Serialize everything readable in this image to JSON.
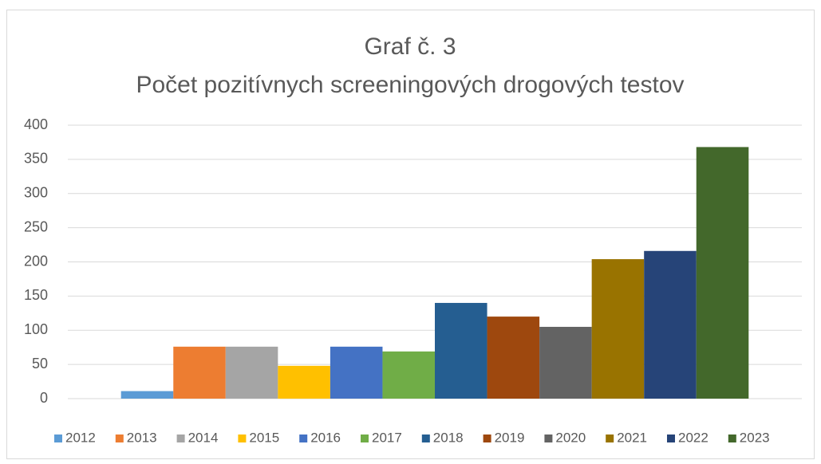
{
  "chart_data": {
    "type": "bar",
    "title": "Graf č. 3",
    "subtitle": "Počet pozitívnych screeningových drogových testov",
    "categories": [
      null
    ],
    "series": [
      {
        "name": "2012",
        "color": "#5b9bd5",
        "values": [
          11
        ]
      },
      {
        "name": "2013",
        "color": "#ed7d31",
        "values": [
          76
        ]
      },
      {
        "name": "2014",
        "color": "#a5a5a5",
        "values": [
          76
        ]
      },
      {
        "name": "2015",
        "color": "#ffc000",
        "values": [
          48
        ]
      },
      {
        "name": "2016",
        "color": "#4472c4",
        "values": [
          76
        ]
      },
      {
        "name": "2017",
        "color": "#70ad47",
        "values": [
          69
        ]
      },
      {
        "name": "2018",
        "color": "#255e91",
        "values": [
          140
        ]
      },
      {
        "name": "2019",
        "color": "#9e480e",
        "values": [
          120
        ]
      },
      {
        "name": "2020",
        "color": "#636363",
        "values": [
          105
        ]
      },
      {
        "name": "2021",
        "color": "#997300",
        "values": [
          204
        ]
      },
      {
        "name": "2022",
        "color": "#264478",
        "values": [
          216
        ]
      },
      {
        "name": "2023",
        "color": "#43682b",
        "values": [
          368
        ]
      }
    ],
    "ylim": [
      0,
      400
    ],
    "yticks": [
      0,
      50,
      100,
      150,
      200,
      250,
      300,
      350,
      400
    ],
    "grid": true,
    "legend": "bottom"
  }
}
